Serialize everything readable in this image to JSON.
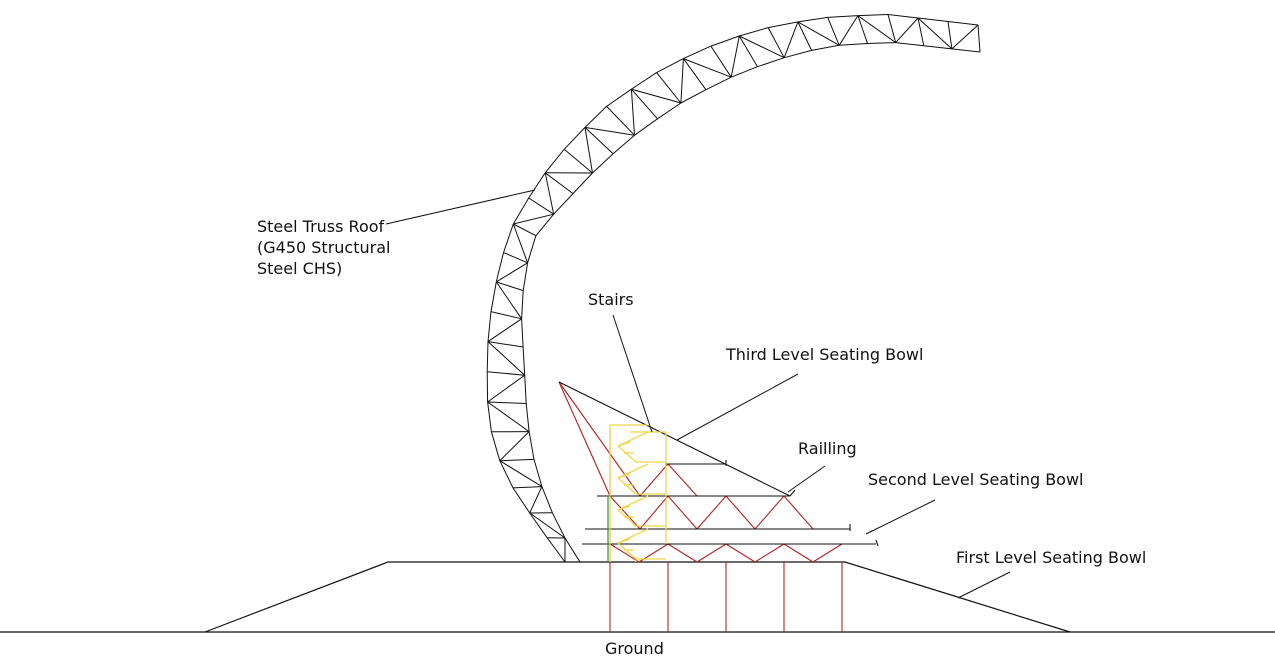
{
  "diagram": {
    "labels": {
      "roof_line1": "Steel Truss Roof",
      "roof_line2": "(G450 Structural",
      "roof_line3": "Steel CHS)",
      "stairs": "Stairs",
      "third_level": "Third Level Seating Bowl",
      "railing": "Railling",
      "second_level": "Second Level Seating Bowl",
      "first_level": "First Level Seating Bowl",
      "ground": "Ground"
    },
    "colors": {
      "roof": "#111111",
      "seating_frame": "#b22222",
      "stairs": "#f2d54a",
      "column_green": "#2e8b3e",
      "ground": "#111111",
      "leader": "#111111"
    }
  }
}
